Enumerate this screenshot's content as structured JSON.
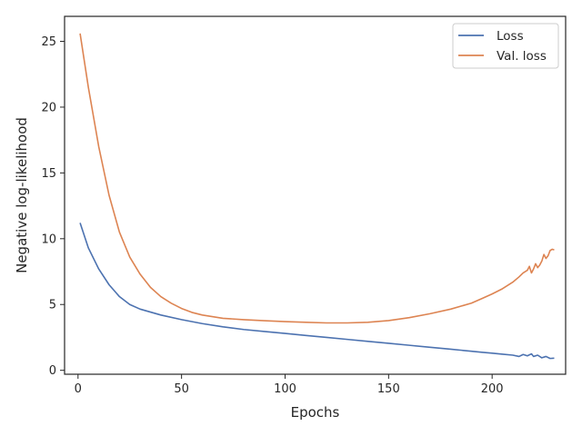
{
  "chart_data": {
    "type": "line",
    "xlabel": "Epochs",
    "ylabel": "Negative log-likelihood",
    "xlim": [
      -6.5,
      235.5
    ],
    "ylim": [
      -0.3,
      26.9
    ],
    "xticks": [
      0,
      50,
      100,
      150,
      200
    ],
    "yticks": [
      0,
      5,
      10,
      15,
      20,
      25
    ],
    "grid": false,
    "legend_position": "top-right",
    "series": [
      {
        "name": "Loss",
        "color": "#4c72b0",
        "x": [
          1,
          5,
          10,
          15,
          20,
          25,
          30,
          40,
          50,
          60,
          70,
          80,
          90,
          100,
          110,
          120,
          130,
          140,
          150,
          160,
          170,
          180,
          190,
          195,
          200,
          205,
          210,
          213,
          215,
          217,
          219,
          220,
          222,
          224,
          226,
          228,
          230
        ],
        "y": [
          11.2,
          9.3,
          7.7,
          6.5,
          5.6,
          5.0,
          4.65,
          4.2,
          3.85,
          3.55,
          3.3,
          3.1,
          2.95,
          2.8,
          2.65,
          2.5,
          2.35,
          2.2,
          2.05,
          1.9,
          1.75,
          1.6,
          1.45,
          1.37,
          1.3,
          1.22,
          1.15,
          1.05,
          1.2,
          1.1,
          1.25,
          1.05,
          1.15,
          0.95,
          1.05,
          0.9,
          0.92
        ]
      },
      {
        "name": "Val. loss",
        "color": "#dd8452",
        "x": [
          1,
          5,
          10,
          15,
          20,
          25,
          30,
          35,
          40,
          45,
          50,
          55,
          60,
          70,
          80,
          90,
          100,
          110,
          120,
          130,
          140,
          150,
          160,
          170,
          180,
          190,
          195,
          200,
          205,
          210,
          213,
          215,
          217,
          218,
          219,
          220,
          221,
          222,
          223,
          224,
          225,
          226,
          227,
          228,
          229,
          230
        ],
        "y": [
          25.6,
          21.5,
          17.0,
          13.3,
          10.5,
          8.6,
          7.3,
          6.3,
          5.6,
          5.1,
          4.7,
          4.4,
          4.2,
          3.95,
          3.85,
          3.77,
          3.7,
          3.65,
          3.6,
          3.6,
          3.65,
          3.78,
          4.0,
          4.3,
          4.65,
          5.1,
          5.45,
          5.8,
          6.2,
          6.7,
          7.1,
          7.4,
          7.6,
          7.9,
          7.4,
          7.7,
          8.1,
          7.8,
          8.0,
          8.3,
          8.8,
          8.5,
          8.7,
          9.1,
          9.2,
          9.15
        ]
      }
    ]
  }
}
